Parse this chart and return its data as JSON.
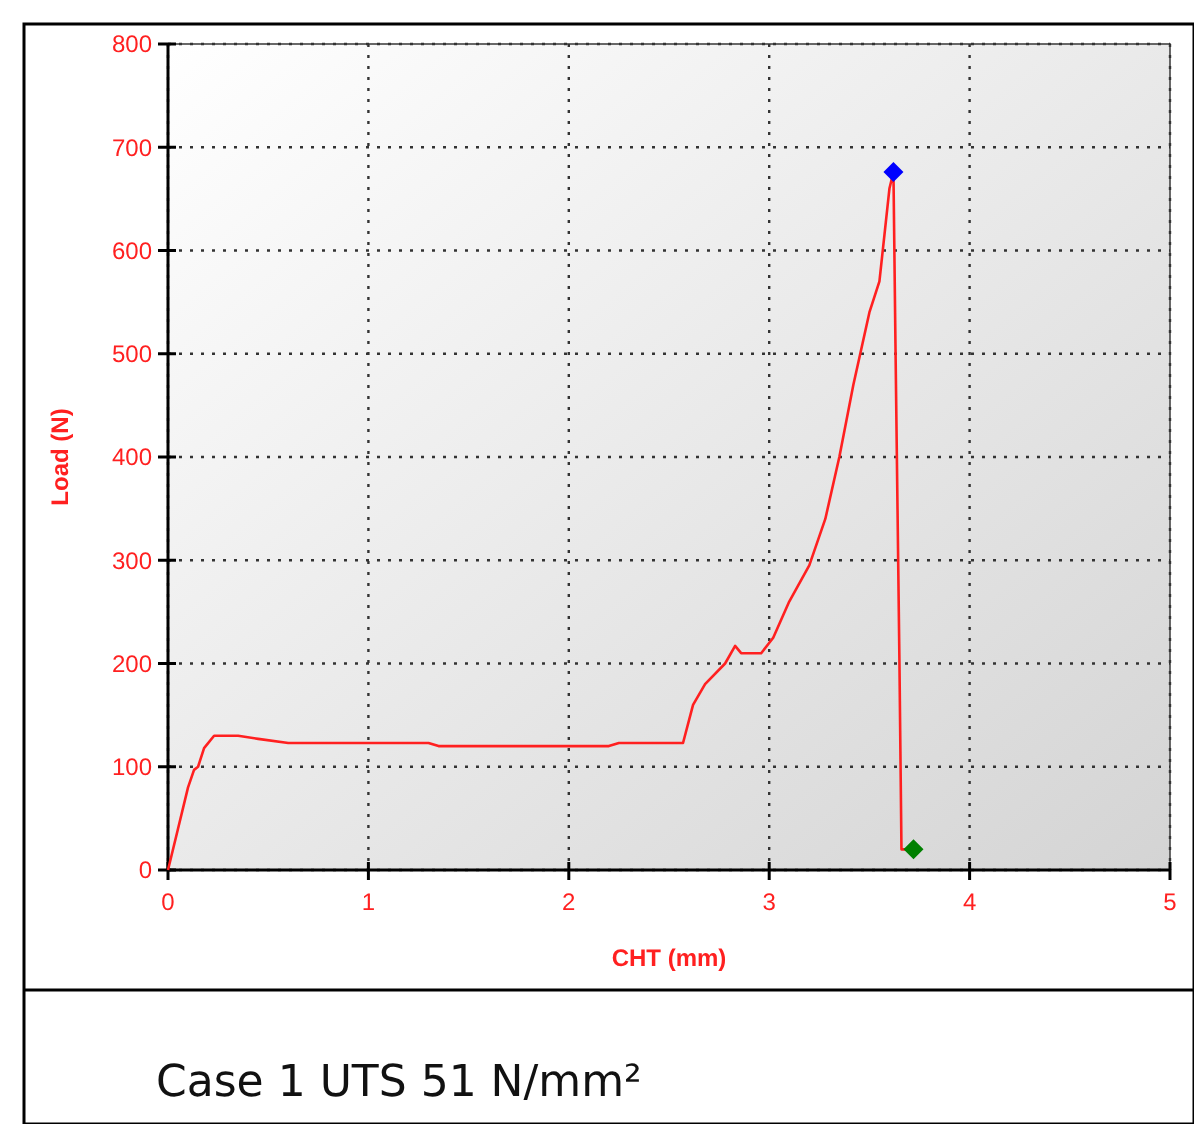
{
  "chart_data": {
    "type": "line",
    "xlabel": "CHT (mm)",
    "ylabel": "Load (N)",
    "xlim": [
      0,
      5
    ],
    "ylim": [
      0,
      800
    ],
    "xticks": [
      0,
      1,
      2,
      3,
      4,
      5
    ],
    "yticks": [
      0,
      100,
      200,
      300,
      400,
      500,
      600,
      700,
      800
    ],
    "grid": true,
    "marker": "none",
    "annotations": [
      "Case 1 UTS 51 N/mm²"
    ],
    "series": [
      {
        "color": "#ff2020",
        "x": [
          0,
          0.05,
          0.1,
          0.13,
          0.15,
          0.18,
          0.23,
          0.35,
          0.45,
          0.6,
          1.3,
          1.35,
          2.2,
          2.25,
          2.57,
          2.62,
          2.68,
          2.78,
          2.83,
          2.86,
          2.96,
          3.02,
          3.1,
          3.2,
          3.28,
          3.35,
          3.42,
          3.5,
          3.55,
          3.6,
          3.62,
          3.63,
          3.65,
          3.66,
          3.69
        ],
        "values": [
          0,
          40,
          80,
          97,
          100,
          118,
          130,
          130,
          127,
          123,
          123,
          120,
          120,
          123,
          123,
          160,
          180,
          200,
          217,
          210,
          210,
          225,
          260,
          295,
          340,
          400,
          470,
          540,
          570,
          660,
          676,
          510,
          200,
          20,
          20
        ]
      },
      {
        "type": "scatter",
        "marker": "diamond",
        "color": "#0000ff",
        "x": [
          3.62
        ],
        "values": [
          676
        ]
      },
      {
        "type": "scatter",
        "marker": "diamond",
        "color": "#008000",
        "x": [
          3.72
        ],
        "values": [
          20
        ]
      }
    ]
  }
}
